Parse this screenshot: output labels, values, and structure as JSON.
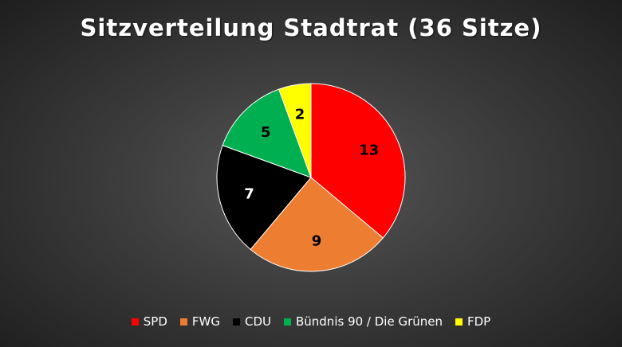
{
  "chart_data": {
    "type": "pie",
    "title": "Sitzverteilung Stadtrat (36 Sitze)",
    "total": 36,
    "categories": [
      "SPD",
      "FWG",
      "CDU",
      "Bündnis 90 / Die Grünen",
      "FDP"
    ],
    "values": [
      13,
      9,
      7,
      5,
      2
    ],
    "colors": [
      "#ff0000",
      "#ed7d31",
      "#000000",
      "#00b050",
      "#ffff00"
    ],
    "label_colors": [
      "#000000",
      "#000000",
      "#ffffff",
      "#000000",
      "#000000"
    ],
    "legend_position": "bottom",
    "start_angle_deg": 0,
    "direction": "clockwise"
  }
}
